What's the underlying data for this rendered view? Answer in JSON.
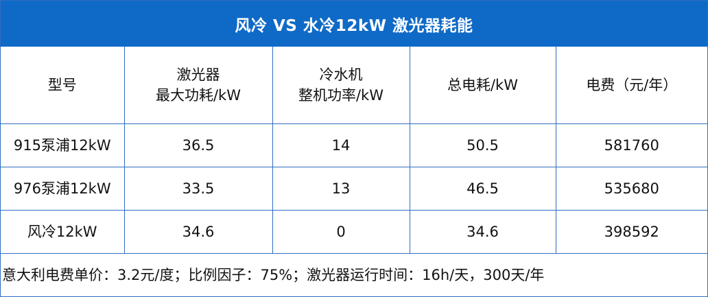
{
  "title": "风冷 VS 水冷12kW 激光器耗能",
  "table": {
    "headers": [
      {
        "lines": [
          "型号"
        ]
      },
      {
        "lines": [
          "激光器",
          "最大功耗/kW"
        ]
      },
      {
        "lines": [
          "冷水机",
          "整机功率/kW"
        ]
      },
      {
        "lines": [
          "总电耗/kW"
        ]
      },
      {
        "lines": [
          "电费（元/年）"
        ]
      }
    ],
    "rows": [
      [
        "915泵浦12kW",
        "36.5",
        "14",
        "50.5",
        "581760"
      ],
      [
        "976泵浦12kW",
        "33.5",
        "13",
        "46.5",
        "535680"
      ],
      [
        "风冷12kW",
        "34.6",
        "0",
        "34.6",
        "398592"
      ]
    ]
  },
  "footer_note": "意大利电费单价：3.2元/度；比例因子：75%；激光器运行时间：16h/天，300天/年",
  "colors": {
    "title_bg": "#0f6ac7",
    "title_text": "#ffffff",
    "grid_line": "#2f6cc0"
  }
}
